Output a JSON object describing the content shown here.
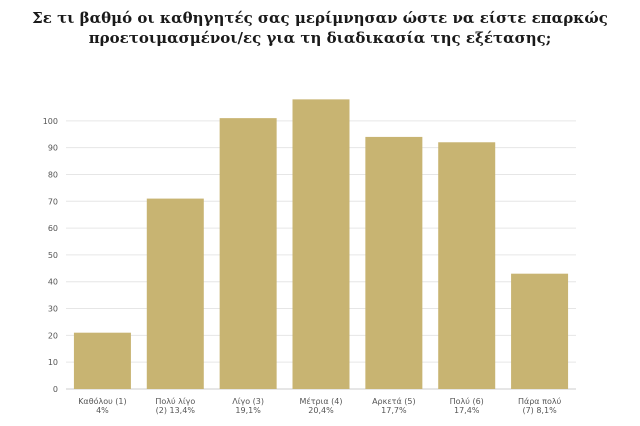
{
  "title_lines": [
    "Σε τι βαθμό οι καθηγητές σας μερίμνησαν ώστε να είστε επαρκώς",
    "προετοιμασμένοι/ες για τη διαδικασία της εξέτασης;"
  ],
  "colors": {
    "bar": "#c8b472",
    "grid": "#e6e6e6",
    "axis": "#cccccc"
  },
  "chart_data": {
    "type": "bar",
    "title": "Σε τι βαθμό οι καθηγητές σας μερίμνησαν ώστε να είστε επαρκώς προετοιμασμένοι/ες για τη διαδικασία της εξέτασης;",
    "categories": [
      [
        "Καθόλου (1)",
        "4%"
      ],
      [
        "Πολύ λίγο",
        "(2) 13,4%"
      ],
      [
        "Λίγο (3)",
        "19,1%"
      ],
      [
        "Μέτρια (4)",
        "20,4%"
      ],
      [
        "Αρκετά (5)",
        "17,7%"
      ],
      [
        "Πολύ (6)",
        "17,4%"
      ],
      [
        "Πάρα πολύ",
        "(7) 8,1%"
      ]
    ],
    "values": [
      21,
      71,
      101,
      108,
      94,
      92,
      43
    ],
    "ylim": [
      0,
      110
    ],
    "yticks": [
      0,
      10,
      20,
      30,
      40,
      50,
      60,
      70,
      80,
      90,
      100
    ],
    "grid": true,
    "xlabel": "",
    "ylabel": ""
  }
}
